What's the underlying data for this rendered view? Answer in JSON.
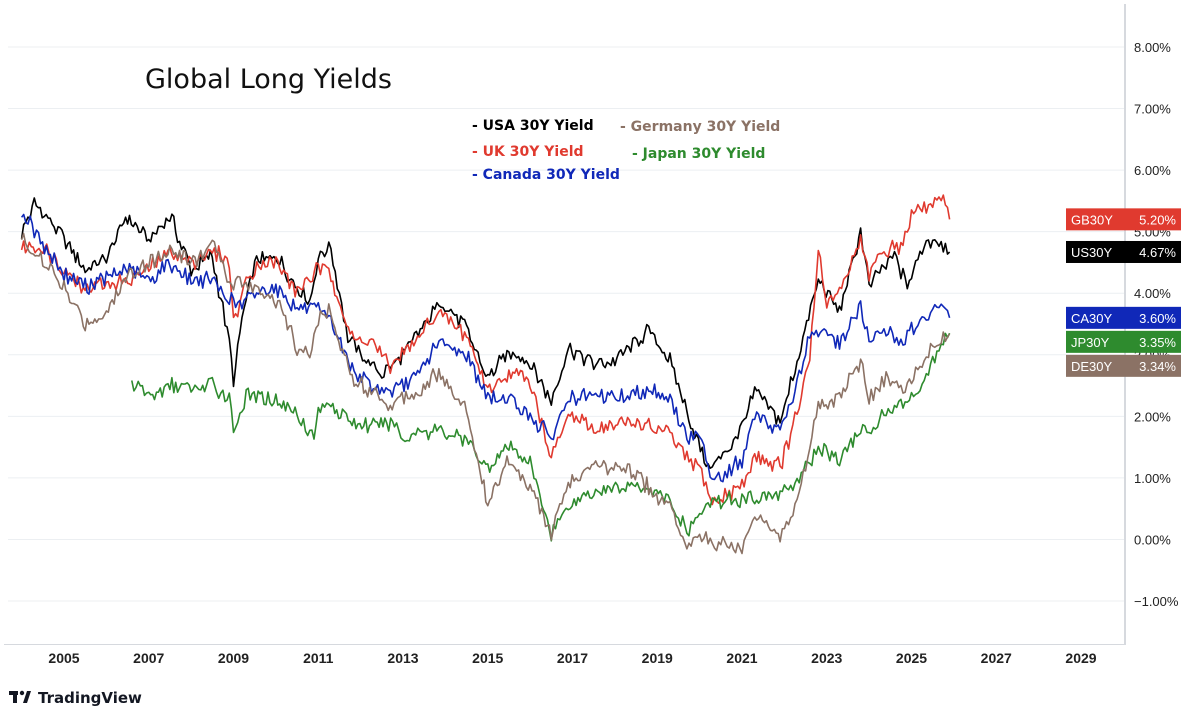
{
  "brand": {
    "name": "TradingView"
  },
  "chart_data": {
    "type": "line",
    "title": "Global Long Yields",
    "xlabel": "",
    "ylabel": "",
    "xlim": [
      2004.0,
      2030.2
    ],
    "ylim": [
      -1.6,
      8.5
    ],
    "y_ticks": [
      {
        "value": 8,
        "label": "8.00%"
      },
      {
        "value": 7,
        "label": "7.00%"
      },
      {
        "value": 6,
        "label": "6.00%"
      },
      {
        "value": 5,
        "label": "5.00%"
      },
      {
        "value": 4,
        "label": "4.00%"
      },
      {
        "value": 3,
        "label": "3.00%"
      },
      {
        "value": 2,
        "label": "2.00%"
      },
      {
        "value": 1,
        "label": "1.00%"
      },
      {
        "value": 0,
        "label": "0.00%"
      },
      {
        "value": -1,
        "label": "−1.00%"
      }
    ],
    "x_ticks": [
      {
        "value": 2005,
        "label": "2005"
      },
      {
        "value": 2007,
        "label": "2007"
      },
      {
        "value": 2009,
        "label": "2009"
      },
      {
        "value": 2011,
        "label": "2011"
      },
      {
        "value": 2013,
        "label": "2013"
      },
      {
        "value": 2015,
        "label": "2015"
      },
      {
        "value": 2017,
        "label": "2017"
      },
      {
        "value": 2019,
        "label": "2019"
      },
      {
        "value": 2021,
        "label": "2021"
      },
      {
        "value": 2023,
        "label": "2023"
      },
      {
        "value": 2025,
        "label": "2025"
      },
      {
        "value": 2027,
        "label": "2027"
      },
      {
        "value": 2029,
        "label": "2029"
      }
    ],
    "legend": [
      {
        "label": "- USA 30Y Yield",
        "color": "#000000"
      },
      {
        "label": "- Germany 30Y Yield",
        "color": "#8b7265"
      },
      {
        "label": "- UK 30Y Yield",
        "color": "#e03a2f"
      },
      {
        "label": "- Japan 30Y Yield",
        "color": "#2e8b2e"
      },
      {
        "label": "- Canada 30Y Yield",
        "color": "#1028b8"
      }
    ],
    "series": [
      {
        "name": "USA 30Y Yield",
        "badge": "US30Y",
        "last": "4.67%",
        "last_value": 4.67,
        "color": "#000000",
        "points": [
          [
            2004.0,
            5.0
          ],
          [
            2004.3,
            5.45
          ],
          [
            2005.0,
            4.9
          ],
          [
            2005.5,
            4.35
          ],
          [
            2006.0,
            4.6
          ],
          [
            2006.5,
            5.25
          ],
          [
            2007.0,
            4.85
          ],
          [
            2007.5,
            5.25
          ],
          [
            2008.0,
            4.4
          ],
          [
            2008.5,
            4.6
          ],
          [
            2008.9,
            3.2
          ],
          [
            2009.0,
            2.55
          ],
          [
            2009.2,
            3.55
          ],
          [
            2009.5,
            4.5
          ],
          [
            2010.0,
            4.6
          ],
          [
            2010.5,
            4.1
          ],
          [
            2010.8,
            3.85
          ],
          [
            2011.0,
            4.6
          ],
          [
            2011.3,
            4.75
          ],
          [
            2011.7,
            3.3
          ],
          [
            2012.0,
            3.0
          ],
          [
            2012.5,
            2.7
          ],
          [
            2012.9,
            2.9
          ],
          [
            2013.5,
            3.5
          ],
          [
            2013.9,
            3.9
          ],
          [
            2014.5,
            3.4
          ],
          [
            2015.0,
            2.6
          ],
          [
            2015.5,
            3.05
          ],
          [
            2016.0,
            2.9
          ],
          [
            2016.5,
            2.25
          ],
          [
            2016.9,
            3.1
          ],
          [
            2017.5,
            2.85
          ],
          [
            2018.0,
            2.9
          ],
          [
            2018.8,
            3.4
          ],
          [
            2019.3,
            2.9
          ],
          [
            2019.7,
            2.1
          ],
          [
            2020.2,
            1.15
          ],
          [
            2020.6,
            1.4
          ],
          [
            2021.0,
            1.85
          ],
          [
            2021.3,
            2.4
          ],
          [
            2021.9,
            1.9
          ],
          [
            2022.3,
            2.9
          ],
          [
            2022.8,
            4.2
          ],
          [
            2023.3,
            3.7
          ],
          [
            2023.8,
            5.0
          ],
          [
            2024.0,
            4.1
          ],
          [
            2024.3,
            4.4
          ],
          [
            2024.6,
            4.6
          ],
          [
            2024.9,
            4.1
          ],
          [
            2025.3,
            4.8
          ],
          [
            2025.6,
            4.9
          ],
          [
            2025.9,
            4.67
          ]
        ]
      },
      {
        "name": "UK 30Y Yield",
        "badge": "GB30Y",
        "last": "5.20%",
        "last_value": 5.2,
        "color": "#e03a2f",
        "points": [
          [
            2004.0,
            4.75
          ],
          [
            2004.5,
            4.75
          ],
          [
            2005.0,
            4.4
          ],
          [
            2005.5,
            4.1
          ],
          [
            2006.0,
            4.15
          ],
          [
            2006.5,
            4.2
          ],
          [
            2007.0,
            4.4
          ],
          [
            2007.5,
            4.7
          ],
          [
            2008.0,
            4.5
          ],
          [
            2008.5,
            4.7
          ],
          [
            2008.9,
            4.5
          ],
          [
            2009.0,
            3.5
          ],
          [
            2009.3,
            4.2
          ],
          [
            2009.6,
            4.5
          ],
          [
            2010.0,
            4.5
          ],
          [
            2010.5,
            4.0
          ],
          [
            2011.0,
            4.4
          ],
          [
            2011.3,
            4.3
          ],
          [
            2011.8,
            3.25
          ],
          [
            2012.3,
            3.2
          ],
          [
            2012.7,
            2.8
          ],
          [
            2013.3,
            3.2
          ],
          [
            2013.8,
            3.7
          ],
          [
            2014.5,
            3.3
          ],
          [
            2015.0,
            2.45
          ],
          [
            2015.5,
            2.7
          ],
          [
            2016.0,
            2.6
          ],
          [
            2016.5,
            1.35
          ],
          [
            2016.9,
            2.0
          ],
          [
            2017.5,
            1.8
          ],
          [
            2018.3,
            1.9
          ],
          [
            2018.8,
            1.85
          ],
          [
            2019.3,
            1.7
          ],
          [
            2019.7,
            1.3
          ],
          [
            2020.0,
            1.2
          ],
          [
            2020.3,
            0.6
          ],
          [
            2020.7,
            0.75
          ],
          [
            2021.0,
            0.85
          ],
          [
            2021.3,
            1.35
          ],
          [
            2021.9,
            1.2
          ],
          [
            2022.2,
            1.8
          ],
          [
            2022.6,
            2.9
          ],
          [
            2022.8,
            4.7
          ],
          [
            2023.0,
            3.8
          ],
          [
            2023.4,
            4.2
          ],
          [
            2023.8,
            4.9
          ],
          [
            2024.0,
            4.3
          ],
          [
            2024.4,
            4.7
          ],
          [
            2024.8,
            4.8
          ],
          [
            2025.0,
            5.3
          ],
          [
            2025.4,
            5.4
          ],
          [
            2025.7,
            5.55
          ],
          [
            2025.9,
            5.2
          ]
        ]
      },
      {
        "name": "Canada 30Y Yield",
        "badge": "CA30Y",
        "last": "3.60%",
        "last_value": 3.6,
        "color": "#1028b8",
        "points": [
          [
            2004.0,
            5.35
          ],
          [
            2004.4,
            4.9
          ],
          [
            2005.0,
            4.3
          ],
          [
            2005.5,
            4.1
          ],
          [
            2006.0,
            4.25
          ],
          [
            2006.5,
            4.4
          ],
          [
            2007.0,
            4.2
          ],
          [
            2007.5,
            4.5
          ],
          [
            2008.0,
            4.2
          ],
          [
            2008.5,
            4.2
          ],
          [
            2008.9,
            3.9
          ],
          [
            2009.2,
            3.8
          ],
          [
            2009.5,
            4.0
          ],
          [
            2010.0,
            4.1
          ],
          [
            2010.5,
            3.75
          ],
          [
            2011.0,
            3.7
          ],
          [
            2011.3,
            3.55
          ],
          [
            2011.8,
            2.75
          ],
          [
            2012.3,
            2.45
          ],
          [
            2012.7,
            2.4
          ],
          [
            2013.3,
            2.6
          ],
          [
            2013.8,
            3.2
          ],
          [
            2014.5,
            3.0
          ],
          [
            2015.0,
            2.3
          ],
          [
            2015.5,
            2.3
          ],
          [
            2016.0,
            2.0
          ],
          [
            2016.5,
            1.65
          ],
          [
            2016.9,
            2.3
          ],
          [
            2017.5,
            2.3
          ],
          [
            2018.3,
            2.35
          ],
          [
            2018.8,
            2.45
          ],
          [
            2019.3,
            2.3
          ],
          [
            2019.7,
            1.65
          ],
          [
            2020.0,
            1.7
          ],
          [
            2020.3,
            1.0
          ],
          [
            2020.7,
            1.1
          ],
          [
            2021.0,
            1.3
          ],
          [
            2021.3,
            2.0
          ],
          [
            2021.9,
            1.8
          ],
          [
            2022.2,
            2.3
          ],
          [
            2022.6,
            3.3
          ],
          [
            2022.8,
            3.4
          ],
          [
            2023.3,
            3.2
          ],
          [
            2023.8,
            3.75
          ],
          [
            2024.0,
            3.2
          ],
          [
            2024.4,
            3.4
          ],
          [
            2024.8,
            3.2
          ],
          [
            2025.0,
            3.4
          ],
          [
            2025.4,
            3.6
          ],
          [
            2025.7,
            3.85
          ],
          [
            2025.9,
            3.6
          ]
        ]
      },
      {
        "name": "Japan 30Y Yield",
        "badge": "JP30Y",
        "last": "3.35%",
        "last_value": 3.35,
        "color": "#2e8b2e",
        "points": [
          [
            2006.6,
            2.55
          ],
          [
            2007.0,
            2.35
          ],
          [
            2007.5,
            2.5
          ],
          [
            2008.0,
            2.45
          ],
          [
            2008.5,
            2.5
          ],
          [
            2008.9,
            2.3
          ],
          [
            2009.0,
            1.8
          ],
          [
            2009.3,
            2.35
          ],
          [
            2010.0,
            2.25
          ],
          [
            2010.5,
            2.05
          ],
          [
            2010.9,
            1.65
          ],
          [
            2011.0,
            2.1
          ],
          [
            2011.3,
            2.2
          ],
          [
            2011.8,
            1.9
          ],
          [
            2012.3,
            1.85
          ],
          [
            2012.8,
            1.9
          ],
          [
            2013.0,
            1.6
          ],
          [
            2013.4,
            1.8
          ],
          [
            2013.8,
            1.75
          ],
          [
            2014.5,
            1.6
          ],
          [
            2015.0,
            1.2
          ],
          [
            2015.5,
            1.5
          ],
          [
            2016.0,
            1.25
          ],
          [
            2016.5,
            0.1
          ],
          [
            2016.9,
            0.55
          ],
          [
            2017.5,
            0.8
          ],
          [
            2018.3,
            0.85
          ],
          [
            2018.8,
            0.85
          ],
          [
            2019.3,
            0.6
          ],
          [
            2019.7,
            0.15
          ],
          [
            2020.0,
            0.4
          ],
          [
            2020.3,
            0.6
          ],
          [
            2020.7,
            0.65
          ],
          [
            2021.0,
            0.65
          ],
          [
            2021.3,
            0.7
          ],
          [
            2021.9,
            0.7
          ],
          [
            2022.2,
            0.9
          ],
          [
            2022.6,
            1.2
          ],
          [
            2022.8,
            1.5
          ],
          [
            2023.3,
            1.3
          ],
          [
            2023.8,
            1.8
          ],
          [
            2024.0,
            1.7
          ],
          [
            2024.4,
            2.1
          ],
          [
            2024.8,
            2.2
          ],
          [
            2025.0,
            2.3
          ],
          [
            2025.3,
            2.6
          ],
          [
            2025.6,
            3.0
          ],
          [
            2025.9,
            3.35
          ]
        ]
      },
      {
        "name": "Germany 30Y Yield",
        "badge": "DE30Y",
        "last": "3.34%",
        "last_value": 3.34,
        "color": "#8b7265",
        "points": [
          [
            2004.0,
            4.9
          ],
          [
            2004.5,
            4.5
          ],
          [
            2005.0,
            4.1
          ],
          [
            2005.5,
            3.5
          ],
          [
            2006.0,
            3.7
          ],
          [
            2006.5,
            4.3
          ],
          [
            2007.0,
            4.5
          ],
          [
            2007.5,
            4.7
          ],
          [
            2008.0,
            4.5
          ],
          [
            2008.5,
            4.8
          ],
          [
            2008.9,
            4.2
          ],
          [
            2009.2,
            4.2
          ],
          [
            2009.5,
            4.1
          ],
          [
            2010.0,
            3.9
          ],
          [
            2010.5,
            3.1
          ],
          [
            2010.8,
            3.0
          ],
          [
            2011.0,
            3.6
          ],
          [
            2011.3,
            3.7
          ],
          [
            2011.8,
            2.6
          ],
          [
            2012.3,
            2.4
          ],
          [
            2012.7,
            2.2
          ],
          [
            2013.3,
            2.4
          ],
          [
            2013.8,
            2.7
          ],
          [
            2014.5,
            2.1
          ],
          [
            2015.0,
            0.6
          ],
          [
            2015.5,
            1.3
          ],
          [
            2016.0,
            0.9
          ],
          [
            2016.5,
            0.1
          ],
          [
            2016.9,
            0.9
          ],
          [
            2017.5,
            1.15
          ],
          [
            2018.3,
            1.2
          ],
          [
            2018.8,
            0.85
          ],
          [
            2019.3,
            0.5
          ],
          [
            2019.7,
            -0.15
          ],
          [
            2020.0,
            0.15
          ],
          [
            2020.3,
            -0.1
          ],
          [
            2020.7,
            -0.1
          ],
          [
            2021.0,
            -0.15
          ],
          [
            2021.3,
            0.4
          ],
          [
            2021.9,
            0.05
          ],
          [
            2022.2,
            0.4
          ],
          [
            2022.6,
            1.5
          ],
          [
            2022.8,
            2.2
          ],
          [
            2023.3,
            2.3
          ],
          [
            2023.8,
            2.9
          ],
          [
            2024.0,
            2.3
          ],
          [
            2024.4,
            2.6
          ],
          [
            2024.8,
            2.4
          ],
          [
            2025.0,
            2.6
          ],
          [
            2025.4,
            3.1
          ],
          [
            2025.7,
            3.25
          ],
          [
            2025.9,
            3.34
          ]
        ]
      }
    ]
  }
}
